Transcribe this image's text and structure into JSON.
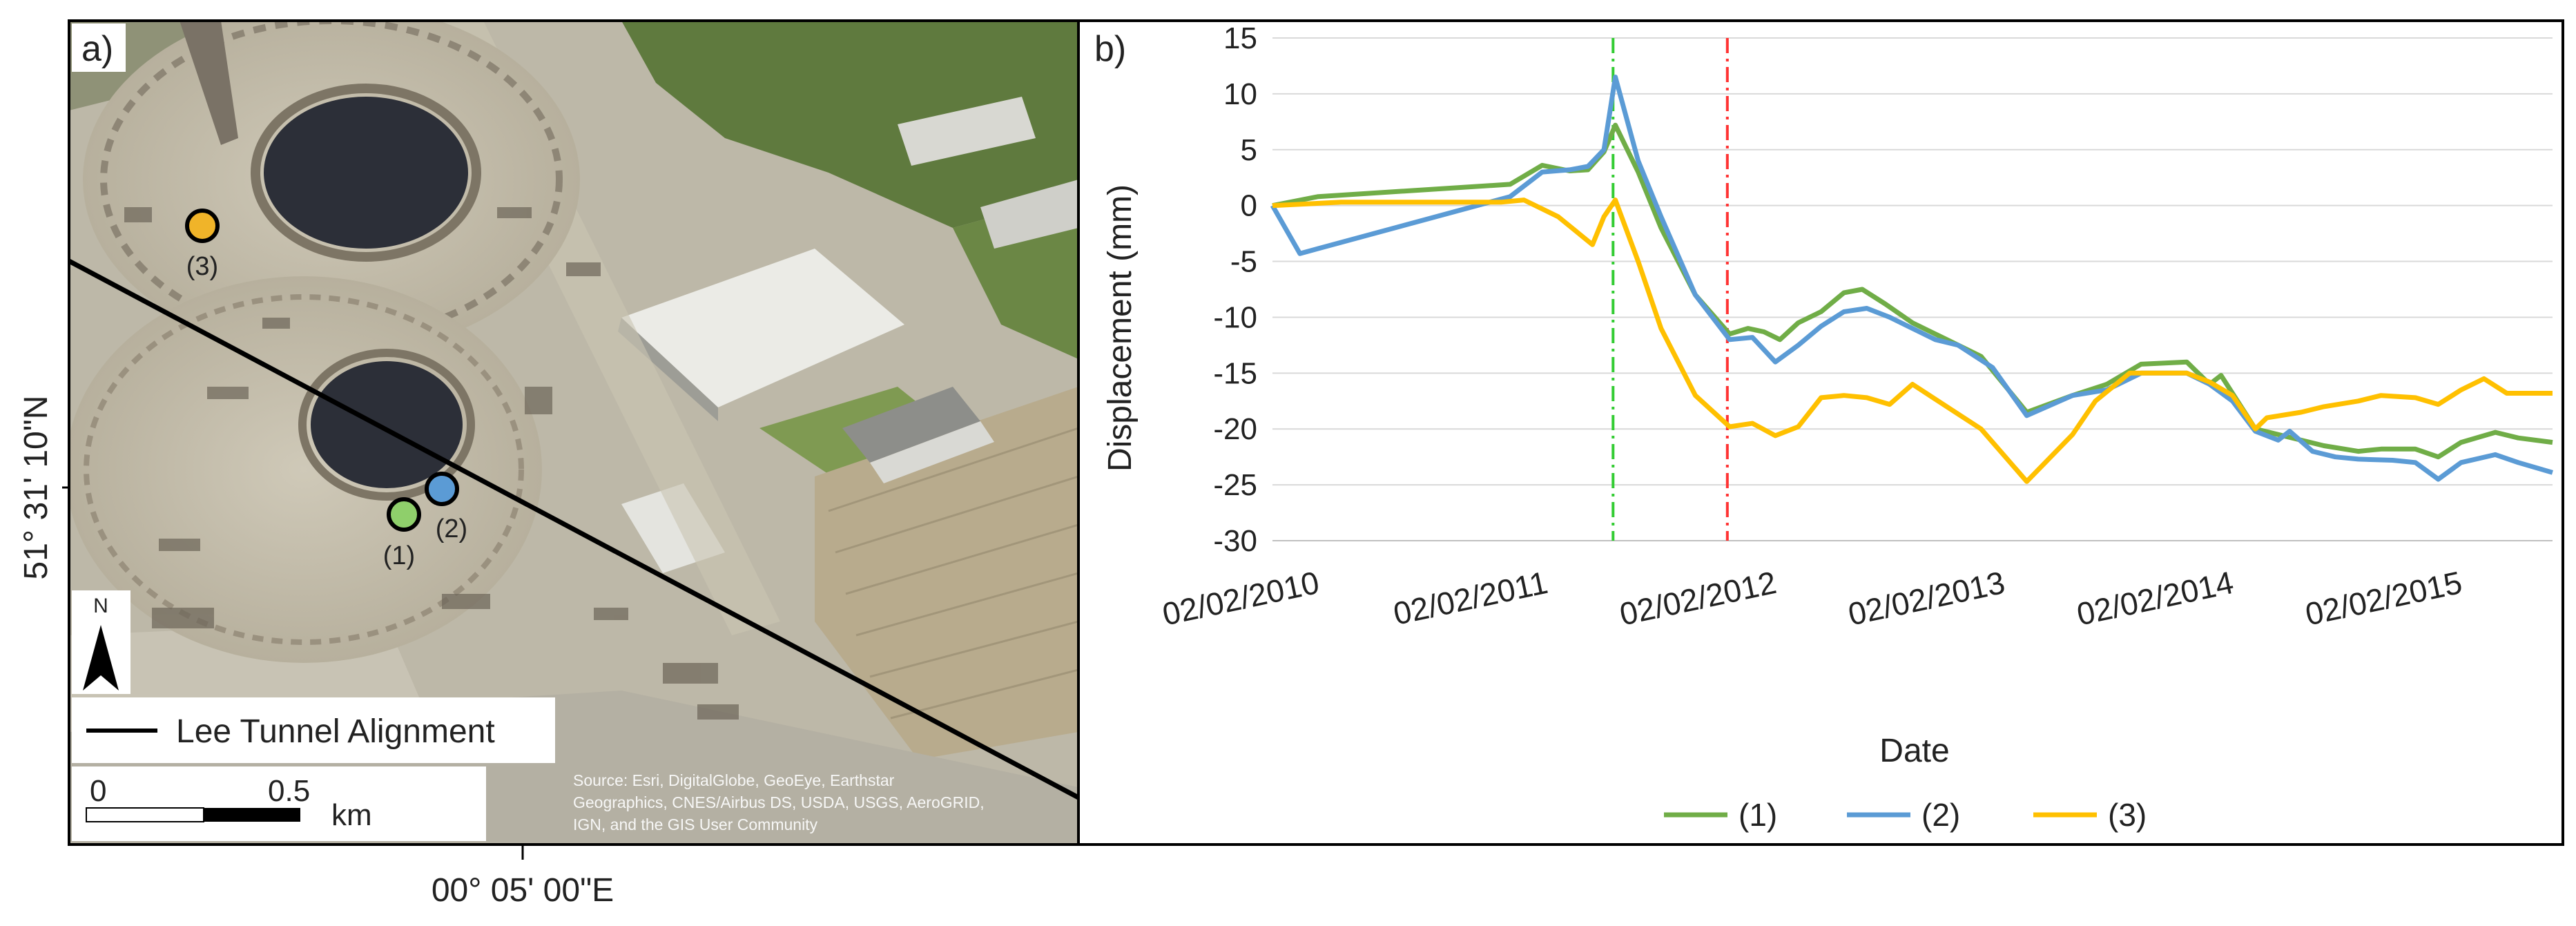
{
  "panel_a": {
    "label": "a)",
    "lat_label": "51° 31' 10\"N",
    "lon_label": "00° 05' 00\"E",
    "north_label": "N",
    "legend_label": "Lee Tunnel Alignment",
    "scale_zero": "0",
    "scale_half": "0.5",
    "scale_unit": "km",
    "points": [
      {
        "label": "(1)",
        "color": "#8fcf6b"
      },
      {
        "label": "(2)",
        "color": "#5b9bd5"
      },
      {
        "label": "(3)",
        "color": "#f0b429"
      }
    ],
    "attribution_lines": [
      "Source: Esri, DigitalGlobe, GeoEye, Earthstar",
      "Geographics, CNES/Airbus DS, USDA, USGS, AeroGRID,",
      "IGN, and the GIS User Community"
    ]
  },
  "chart_data": {
    "type": "line",
    "panel_label": "b)",
    "title": "",
    "xlabel": "Date",
    "ylabel": "Displacement (mm)",
    "ylim": [
      -30,
      15
    ],
    "yticks": [
      15,
      10,
      5,
      0,
      -5,
      -10,
      -15,
      -20,
      -25,
      -30
    ],
    "xlim": [
      2010.0,
      2015.6
    ],
    "xticks": [
      {
        "value": 2010.0,
        "label": "02/02/2010"
      },
      {
        "value": 2011.0,
        "label": "02/02/2011"
      },
      {
        "value": 2012.0,
        "label": "02/02/2012"
      },
      {
        "value": 2013.0,
        "label": "02/02/2013"
      },
      {
        "value": 2014.0,
        "label": "02/02/2014"
      },
      {
        "value": 2015.0,
        "label": "02/02/2015"
      }
    ],
    "grid": true,
    "legend_position": "bottom",
    "vlines": [
      {
        "x": 2011.49,
        "color": "#33cc33",
        "style": "dash-dot"
      },
      {
        "x": 2011.99,
        "color": "#ff3333",
        "style": "dash-dot"
      }
    ],
    "series": [
      {
        "name": "(1)",
        "color": "#70ad47",
        "points": [
          [
            2010.0,
            0
          ],
          [
            2010.2,
            0.8
          ],
          [
            2011.04,
            1.9
          ],
          [
            2011.18,
            3.6
          ],
          [
            2011.3,
            3.1
          ],
          [
            2011.38,
            3.2
          ],
          [
            2011.45,
            4.8
          ],
          [
            2011.5,
            7.2
          ],
          [
            2011.6,
            3
          ],
          [
            2011.7,
            -2
          ],
          [
            2011.85,
            -8
          ],
          [
            2012.0,
            -11.5
          ],
          [
            2012.08,
            -11
          ],
          [
            2012.15,
            -11.3
          ],
          [
            2012.22,
            -12
          ],
          [
            2012.3,
            -10.5
          ],
          [
            2012.4,
            -9.5
          ],
          [
            2012.5,
            -7.8
          ],
          [
            2012.58,
            -7.5
          ],
          [
            2012.68,
            -8.8
          ],
          [
            2012.8,
            -10.5
          ],
          [
            2012.95,
            -12
          ],
          [
            2013.1,
            -13.5
          ],
          [
            2013.3,
            -18.5
          ],
          [
            2013.5,
            -17
          ],
          [
            2013.65,
            -16
          ],
          [
            2013.8,
            -14.2
          ],
          [
            2014.0,
            -14
          ],
          [
            2014.1,
            -16
          ],
          [
            2014.15,
            -15.2
          ],
          [
            2014.3,
            -20
          ],
          [
            2014.4,
            -20.5
          ],
          [
            2014.5,
            -21
          ],
          [
            2014.6,
            -21.5
          ],
          [
            2014.75,
            -22
          ],
          [
            2014.85,
            -21.8
          ],
          [
            2015.0,
            -21.8
          ],
          [
            2015.1,
            -22.5
          ],
          [
            2015.2,
            -21.2
          ],
          [
            2015.35,
            -20.3
          ],
          [
            2015.45,
            -20.8
          ],
          [
            2015.6,
            -21.2
          ]
        ]
      },
      {
        "name": "(2)",
        "color": "#5b9bd5",
        "points": [
          [
            2010.0,
            0
          ],
          [
            2010.12,
            -4.3
          ],
          [
            2011.04,
            0.8
          ],
          [
            2011.18,
            3
          ],
          [
            2011.3,
            3.2
          ],
          [
            2011.38,
            3.5
          ],
          [
            2011.45,
            5
          ],
          [
            2011.5,
            11.5
          ],
          [
            2011.6,
            4
          ],
          [
            2011.7,
            -1
          ],
          [
            2011.85,
            -8
          ],
          [
            2012.0,
            -12
          ],
          [
            2012.1,
            -11.8
          ],
          [
            2012.2,
            -14
          ],
          [
            2012.3,
            -12.5
          ],
          [
            2012.4,
            -10.8
          ],
          [
            2012.5,
            -9.5
          ],
          [
            2012.6,
            -9.2
          ],
          [
            2012.7,
            -10
          ],
          [
            2012.8,
            -11
          ],
          [
            2012.9,
            -12
          ],
          [
            2013.0,
            -12.5
          ],
          [
            2013.15,
            -14.5
          ],
          [
            2013.3,
            -18.8
          ],
          [
            2013.5,
            -17
          ],
          [
            2013.65,
            -16.5
          ],
          [
            2013.8,
            -15
          ],
          [
            2014.0,
            -15
          ],
          [
            2014.1,
            -16
          ],
          [
            2014.2,
            -17.5
          ],
          [
            2014.3,
            -20.2
          ],
          [
            2014.4,
            -21
          ],
          [
            2014.45,
            -20.2
          ],
          [
            2014.55,
            -22
          ],
          [
            2014.65,
            -22.5
          ],
          [
            2014.75,
            -22.7
          ],
          [
            2014.9,
            -22.8
          ],
          [
            2015.0,
            -23
          ],
          [
            2015.1,
            -24.5
          ],
          [
            2015.2,
            -23
          ],
          [
            2015.35,
            -22.3
          ],
          [
            2015.45,
            -23
          ],
          [
            2015.6,
            -23.9
          ]
        ]
      },
      {
        "name": "(3)",
        "color": "#ffc000",
        "points": [
          [
            2010.0,
            0
          ],
          [
            2010.3,
            0.3
          ],
          [
            2011.0,
            0.3
          ],
          [
            2011.1,
            0.5
          ],
          [
            2011.25,
            -1
          ],
          [
            2011.4,
            -3.5
          ],
          [
            2011.45,
            -1
          ],
          [
            2011.5,
            0.5
          ],
          [
            2011.6,
            -5
          ],
          [
            2011.7,
            -11
          ],
          [
            2011.85,
            -17
          ],
          [
            2012.0,
            -19.8
          ],
          [
            2012.1,
            -19.5
          ],
          [
            2012.2,
            -20.6
          ],
          [
            2012.3,
            -19.8
          ],
          [
            2012.4,
            -17.2
          ],
          [
            2012.5,
            -17
          ],
          [
            2012.6,
            -17.2
          ],
          [
            2012.7,
            -17.8
          ],
          [
            2012.8,
            -16
          ],
          [
            2012.95,
            -18
          ],
          [
            2013.1,
            -20
          ],
          [
            2013.3,
            -24.7
          ],
          [
            2013.5,
            -20.5
          ],
          [
            2013.6,
            -17.5
          ],
          [
            2013.75,
            -15
          ],
          [
            2014.0,
            -15
          ],
          [
            2014.1,
            -15.8
          ],
          [
            2014.2,
            -17
          ],
          [
            2014.3,
            -20
          ],
          [
            2014.35,
            -19
          ],
          [
            2014.5,
            -18.5
          ],
          [
            2014.6,
            -18
          ],
          [
            2014.75,
            -17.5
          ],
          [
            2014.85,
            -17
          ],
          [
            2015.0,
            -17.2
          ],
          [
            2015.1,
            -17.8
          ],
          [
            2015.2,
            -16.5
          ],
          [
            2015.3,
            -15.5
          ],
          [
            2015.4,
            -16.8
          ],
          [
            2015.6,
            -16.8
          ]
        ]
      }
    ]
  }
}
